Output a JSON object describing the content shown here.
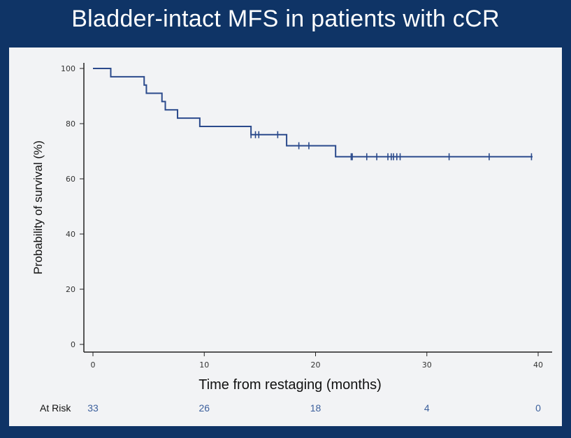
{
  "title": "Bladder-intact MFS in patients with cCR",
  "colors": {
    "background": "#0f3466",
    "panel": "#f2f3f5",
    "curve": "#2b4a8c",
    "axis": "#222222",
    "risk_numbers": "#3b5f9c"
  },
  "chart_data": {
    "type": "line",
    "subtype": "kaplan-meier-step",
    "title": "",
    "xlabel": "Time from restaging (months)",
    "ylabel": "Probability of survival (%)",
    "xlim": [
      0,
      40
    ],
    "ylim": [
      0,
      100
    ],
    "xticks": [
      0,
      10,
      20,
      30,
      40
    ],
    "yticks": [
      0,
      20,
      40,
      60,
      80,
      100
    ],
    "xtick_labels": [
      "0",
      "10",
      "20",
      "30",
      "40"
    ],
    "ytick_labels": [
      "0",
      "20",
      "40",
      "60",
      "80",
      "100"
    ],
    "grid": false,
    "legend": "none",
    "series": [
      {
        "steps": [
          {
            "x": 0,
            "y": 100
          },
          {
            "x": 1.6,
            "y": 97
          },
          {
            "x": 4.6,
            "y": 94
          },
          {
            "x": 4.8,
            "y": 91
          },
          {
            "x": 6.2,
            "y": 88
          },
          {
            "x": 6.5,
            "y": 85
          },
          {
            "x": 7.6,
            "y": 82
          },
          {
            "x": 9.6,
            "y": 79
          },
          {
            "x": 14.2,
            "y": 76
          },
          {
            "x": 17.4,
            "y": 72
          },
          {
            "x": 21.8,
            "y": 68
          },
          {
            "x": 39.5,
            "y": 68
          }
        ],
        "censored": [
          14.2,
          14.6,
          14.9,
          16.6,
          18.5,
          19.4,
          23.2,
          23.3,
          24.6,
          25.5,
          26.5,
          26.8,
          27.0,
          27.3,
          27.6,
          32.0,
          35.6,
          39.4
        ]
      }
    ],
    "at_risk": {
      "label": "At Risk",
      "times": [
        0,
        10,
        20,
        30,
        40
      ],
      "counts": [
        "33",
        "26",
        "18",
        "4",
        "0"
      ]
    }
  }
}
